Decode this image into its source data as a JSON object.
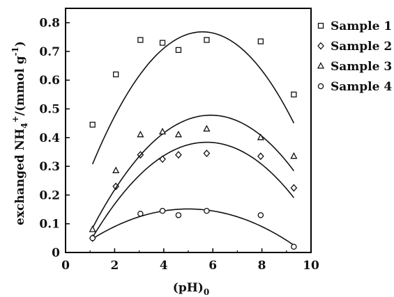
{
  "chart_data": {
    "type": "scatter",
    "title": "",
    "xlabel": {
      "main": "(pH)",
      "sub": "0"
    },
    "ylabel": {
      "pre": "exchanged NH",
      "sub": "4",
      "sup": "+",
      "post": "/(mmol g",
      "sup2": "-1",
      "close": ")"
    },
    "xlim": [
      0,
      10
    ],
    "ylim": [
      0,
      0.85
    ],
    "xticks": [
      0,
      2,
      4,
      6,
      8,
      10
    ],
    "yticks": [
      0,
      0.1,
      0.2,
      0.3,
      0.4,
      0.5,
      0.6,
      0.7,
      0.8
    ],
    "xtick_labels": [
      "0",
      "2",
      "4",
      "6",
      "8",
      "10"
    ],
    "ytick_labels": [
      "0",
      "0.1",
      "0.2",
      "0.3",
      "0.4",
      "0.5",
      "0.6",
      "0.7",
      "0.8"
    ],
    "grid": false,
    "legend_position": "top-right, outside plot",
    "series": [
      {
        "name": "Sample 1",
        "marker": "square",
        "points": [
          [
            1.1,
            0.445
          ],
          [
            2.05,
            0.62
          ],
          [
            3.05,
            0.74
          ],
          [
            3.95,
            0.73
          ],
          [
            4.6,
            0.705
          ],
          [
            5.75,
            0.74
          ],
          [
            7.95,
            0.735
          ],
          [
            9.3,
            0.55
          ]
        ],
        "fit": [
          -0.02295,
          0.25607,
          0.05385
        ]
      },
      {
        "name": "Sample 2",
        "marker": "diamond",
        "points": [
          [
            1.1,
            0.05
          ],
          [
            2.05,
            0.23
          ],
          [
            3.05,
            0.34
          ],
          [
            3.95,
            0.325
          ],
          [
            4.6,
            0.34
          ],
          [
            5.75,
            0.345
          ],
          [
            7.95,
            0.335
          ],
          [
            9.3,
            0.225
          ]
        ],
        "fit": [
          -0.01532,
          0.17618,
          -0.12272
        ]
      },
      {
        "name": "Sample 3",
        "marker": "triangle",
        "points": [
          [
            1.1,
            0.08
          ],
          [
            2.05,
            0.285
          ],
          [
            3.05,
            0.41
          ],
          [
            3.95,
            0.42
          ],
          [
            4.6,
            0.41
          ],
          [
            5.75,
            0.43
          ],
          [
            7.95,
            0.4
          ],
          [
            9.3,
            0.335
          ]
        ],
        "fit": [
          -0.01692,
          0.20021,
          -0.11424
        ]
      },
      {
        "name": "Sample 4",
        "marker": "circle",
        "points": [
          [
            1.1,
            0.05
          ],
          [
            3.05,
            0.135
          ],
          [
            3.95,
            0.145
          ],
          [
            4.6,
            0.13
          ],
          [
            5.75,
            0.145
          ],
          [
            7.95,
            0.13
          ],
          [
            9.3,
            0.02
          ]
        ],
        "fit": [
          -0.00681,
          0.06808,
          -0.01867
        ]
      }
    ],
    "fit_range": [
      1.1,
      9.3
    ],
    "colors": {
      "marker": "#111111",
      "line": "#111111",
      "axis": "#000000"
    }
  }
}
